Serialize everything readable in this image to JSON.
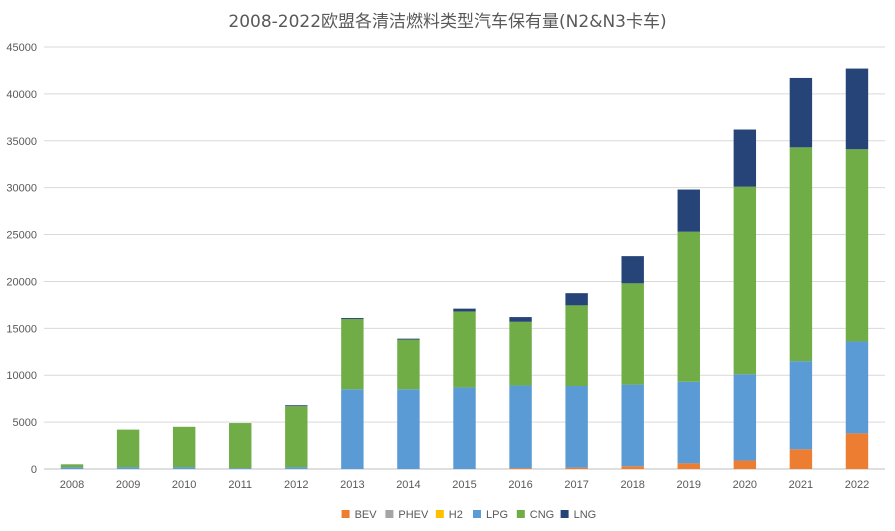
{
  "chart_data": {
    "type": "bar",
    "stacked": true,
    "title": "2008-2022欧盟各清洁燃料类型汽车保有量(N2&N3卡车)",
    "xlabel": "",
    "ylabel": "",
    "categories": [
      "2008",
      "2009",
      "2010",
      "2011",
      "2012",
      "2013",
      "2014",
      "2015",
      "2016",
      "2017",
      "2018",
      "2019",
      "2020",
      "2021",
      "2022"
    ],
    "ylim": [
      0,
      45000
    ],
    "yticks": [
      0,
      5000,
      10000,
      15000,
      20000,
      25000,
      30000,
      35000,
      40000,
      45000
    ],
    "ytick_labels": [
      "0",
      "5000",
      "10000",
      "15000",
      "20000",
      "25000",
      "30000",
      "35000",
      "40000",
      "45000"
    ],
    "grid": true,
    "legend_position": "bottom",
    "series": [
      {
        "name": "BEV",
        "color": "#ED7D31",
        "values": [
          0,
          0,
          0,
          0,
          0,
          0,
          0,
          0,
          100,
          150,
          300,
          600,
          900,
          2100,
          3800
        ]
      },
      {
        "name": "PHEV",
        "color": "#A5A5A5",
        "values": [
          0,
          0,
          0,
          0,
          0,
          0,
          0,
          0,
          0,
          0,
          0,
          0,
          0,
          0,
          0
        ]
      },
      {
        "name": "H2",
        "color": "#FFC000",
        "values": [
          0,
          0,
          0,
          0,
          0,
          0,
          0,
          0,
          0,
          0,
          0,
          0,
          0,
          0,
          0
        ]
      },
      {
        "name": "LPG",
        "color": "#5B9BD5",
        "values": [
          200,
          200,
          200,
          100,
          200,
          8500,
          8500,
          8700,
          8800,
          8700,
          8700,
          8700,
          9200,
          9400,
          9800
        ]
      },
      {
        "name": "CNG",
        "color": "#70AD47",
        "values": [
          300,
          4000,
          4300,
          4800,
          6500,
          7500,
          5300,
          8100,
          6800,
          8600,
          10800,
          16000,
          20000,
          22800,
          20500
        ]
      },
      {
        "name": "LNG",
        "color": "#264478",
        "values": [
          0,
          0,
          0,
          0,
          100,
          100,
          100,
          300,
          500,
          1300,
          2900,
          4500,
          6100,
          7400,
          8600
        ]
      }
    ]
  }
}
